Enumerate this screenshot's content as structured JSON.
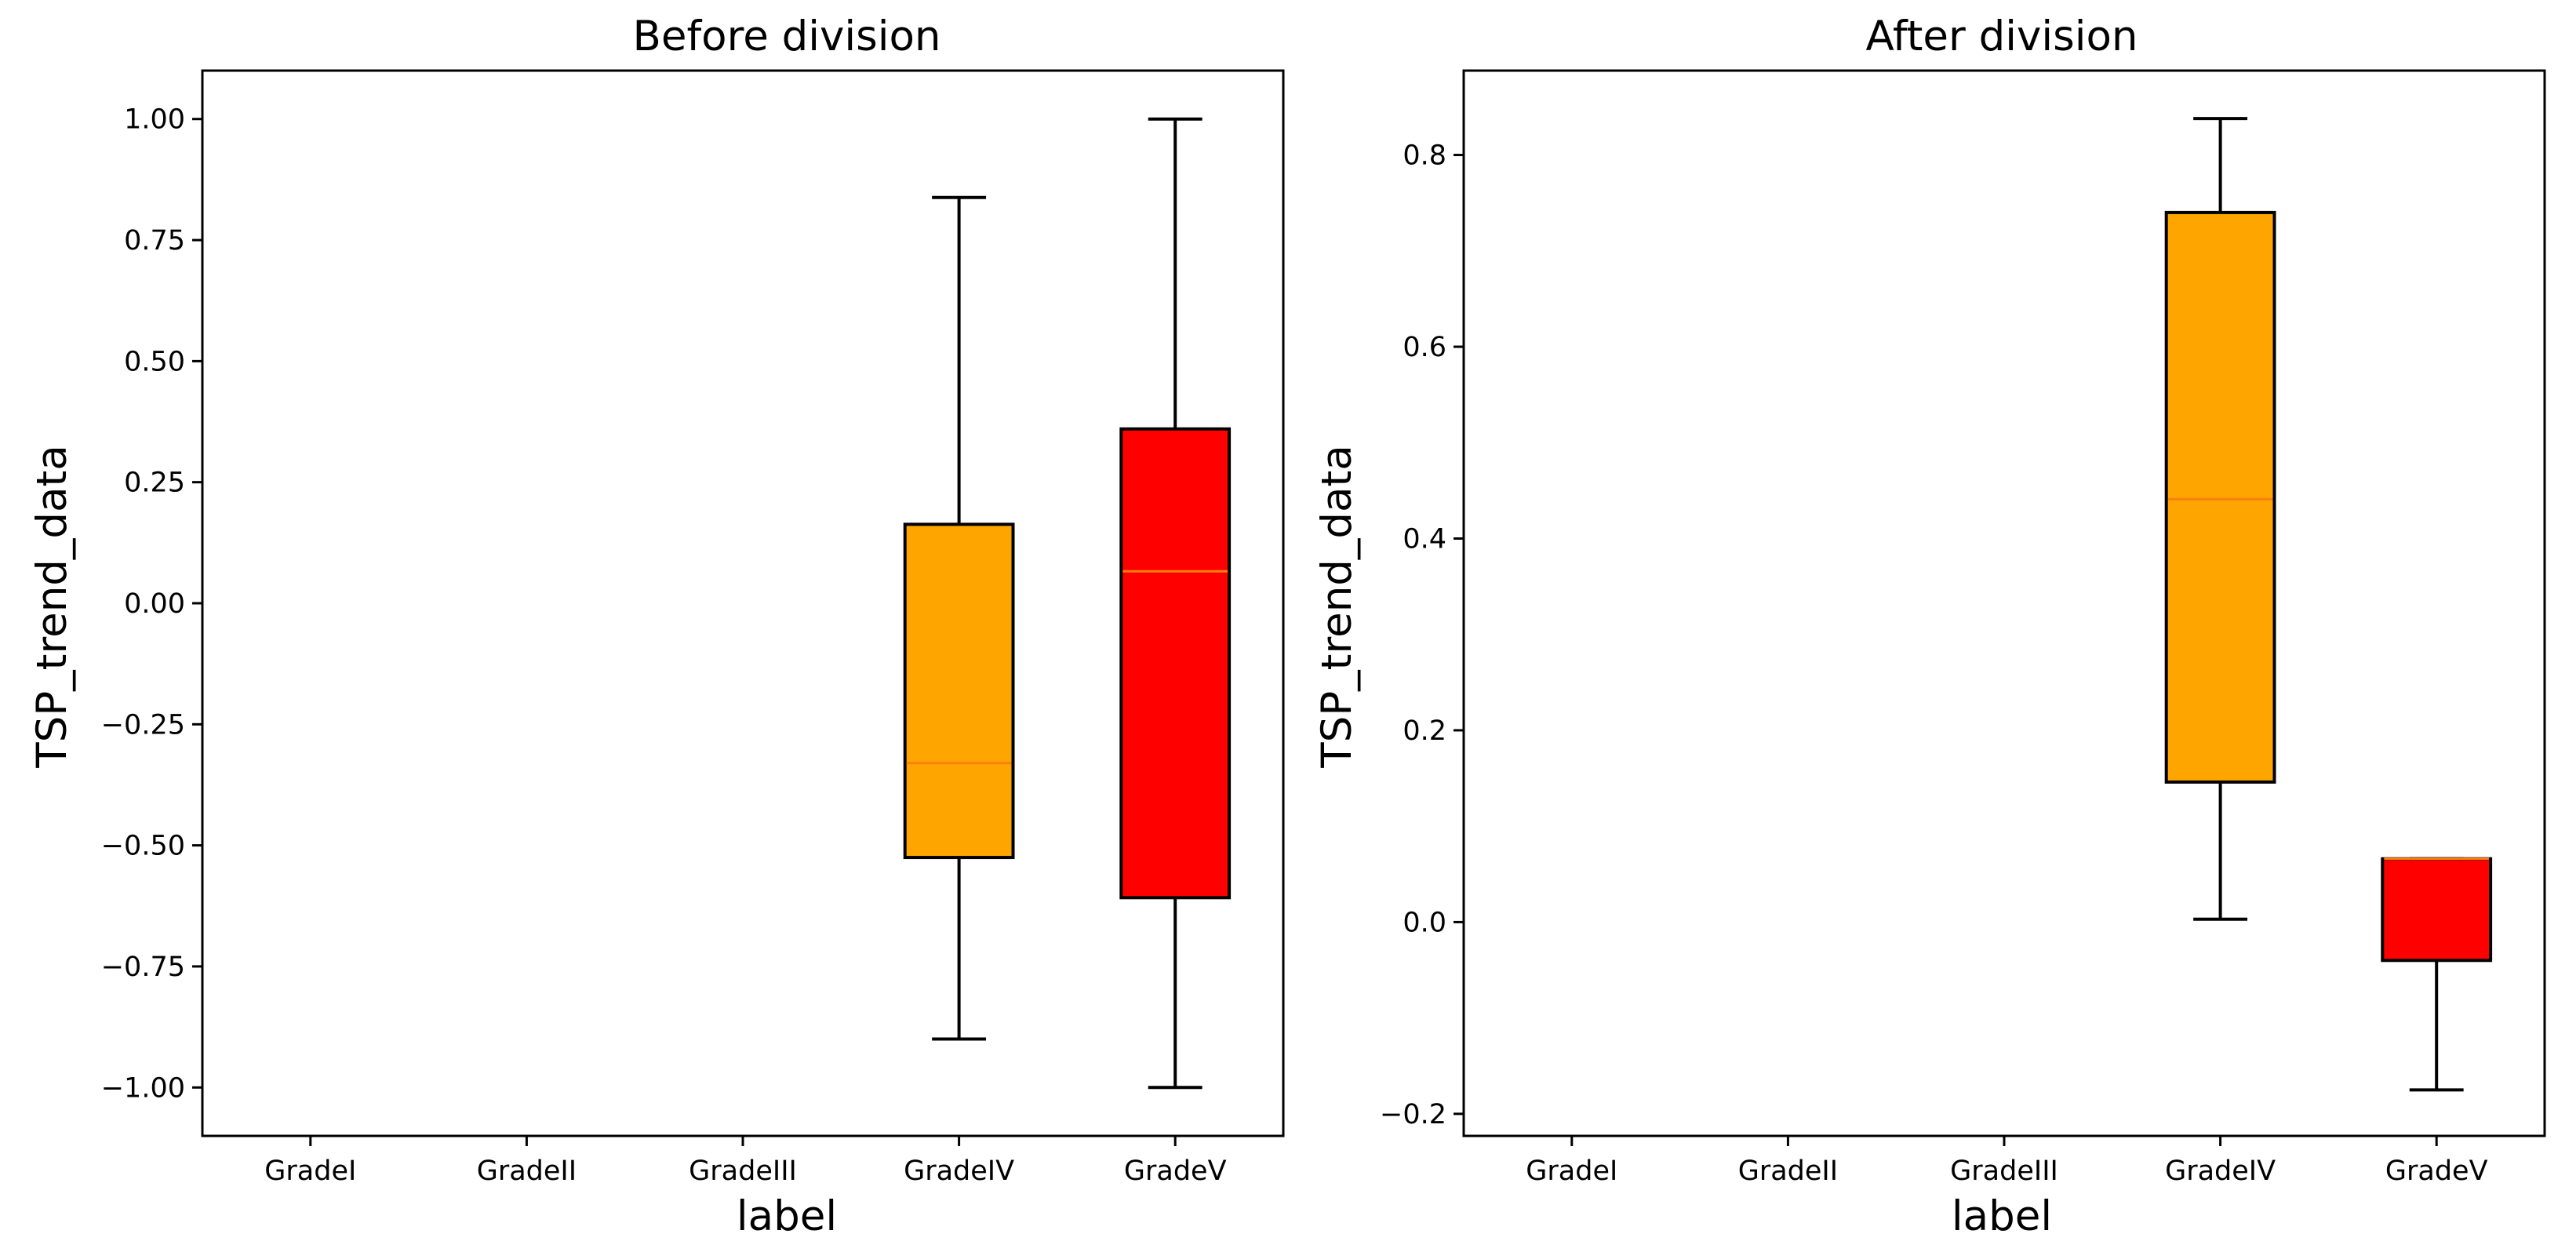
{
  "chart_data": [
    {
      "type": "box",
      "title": "Before division",
      "xlabel": "label",
      "ylabel": "TSP_trend_data",
      "categories": [
        "GradeI",
        "GradeII",
        "GradeIII",
        "GradeIV",
        "GradeV"
      ],
      "ylim": [
        -1.1,
        1.1
      ],
      "yticks": [
        1.0,
        0.75,
        0.5,
        0.25,
        0.0,
        -0.25,
        -0.5,
        -0.75,
        -1.0
      ],
      "ytick_labels": [
        "1.00",
        "0.75",
        "0.50",
        "0.25",
        "0.00",
        "−0.25",
        "−0.50",
        "−0.75",
        "−1.00"
      ],
      "boxes": [
        {
          "category": "GradeIV",
          "whisker_low": -0.9,
          "q1": -0.525,
          "median": -0.33,
          "q3": 0.163,
          "whisker_high": 0.838,
          "color": "#FFA500"
        },
        {
          "category": "GradeV",
          "whisker_low": -1.0,
          "q1": -0.608,
          "median": 0.066,
          "q3": 0.36,
          "whisker_high": 1.0,
          "color": "#FF0000"
        }
      ]
    },
    {
      "type": "box",
      "title": "After division",
      "xlabel": "label",
      "ylabel": "TSP_trend_data",
      "categories": [
        "GradeI",
        "GradeII",
        "GradeIII",
        "GradeIV",
        "GradeV"
      ],
      "ylim": [
        -0.223,
        0.888
      ],
      "yticks": [
        0.8,
        0.6,
        0.4,
        0.2,
        0.0,
        -0.2
      ],
      "ytick_labels": [
        "0.8",
        "0.6",
        "0.4",
        "0.2",
        "0.0",
        "−0.2"
      ],
      "boxes": [
        {
          "category": "GradeIV",
          "whisker_low": 0.003,
          "q1": 0.146,
          "median": 0.441,
          "q3": 0.74,
          "whisker_high": 0.838,
          "color": "#FFA500"
        },
        {
          "category": "GradeV",
          "whisker_low": -0.175,
          "q1": -0.04,
          "median": 0.066,
          "q3": 0.066,
          "whisker_high": 0.066,
          "color": "#FF0000"
        }
      ]
    }
  ],
  "style": {
    "median_color": "#FF7F0E",
    "line_color": "#000000"
  }
}
